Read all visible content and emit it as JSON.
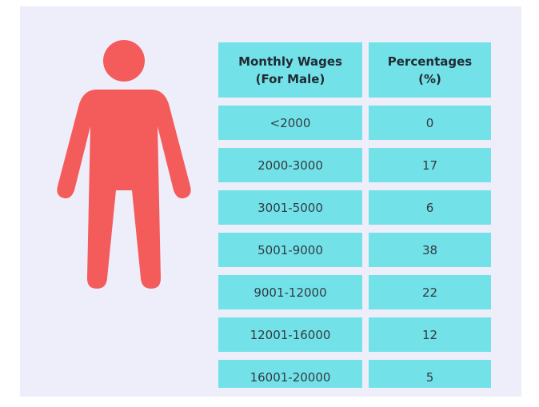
{
  "table": {
    "header": [
      [
        "Monthly Wages",
        "(For Male)"
      ],
      [
        "Percentages",
        "(%)"
      ]
    ],
    "rows": [
      [
        "<2000",
        0
      ],
      [
        "2000-3000",
        17
      ],
      [
        "3001-5000",
        6
      ],
      [
        "5001-9000",
        38
      ],
      [
        "9001-12000",
        22
      ],
      [
        "12001-16000",
        12
      ],
      [
        "16001-20000",
        5
      ]
    ]
  }
}
